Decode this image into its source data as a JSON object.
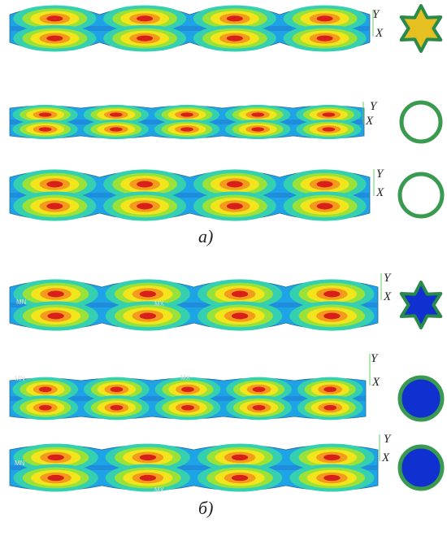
{
  "panels": [
    {
      "caption": "а)",
      "rows": [
        {
          "axis_labels": [
            "Y",
            "X"
          ],
          "contour_labels": []
        },
        {
          "axis_labels": [
            "Y",
            "X"
          ],
          "contour_labels": []
        },
        {
          "axis_labels": [
            "Y",
            "X"
          ],
          "contour_labels": []
        }
      ]
    },
    {
      "caption": "б)",
      "rows": [
        {
          "axis_labels": [
            "Y",
            "X"
          ],
          "contour_labels": [
            "MN",
            "MX"
          ]
        },
        {
          "axis_labels": [
            "Y",
            "X"
          ],
          "contour_labels": [
            "MN",
            "MX"
          ]
        },
        {
          "axis_labels": [
            "Y",
            "X"
          ],
          "contour_labels": [
            "MN",
            "MX"
          ]
        }
      ]
    }
  ]
}
